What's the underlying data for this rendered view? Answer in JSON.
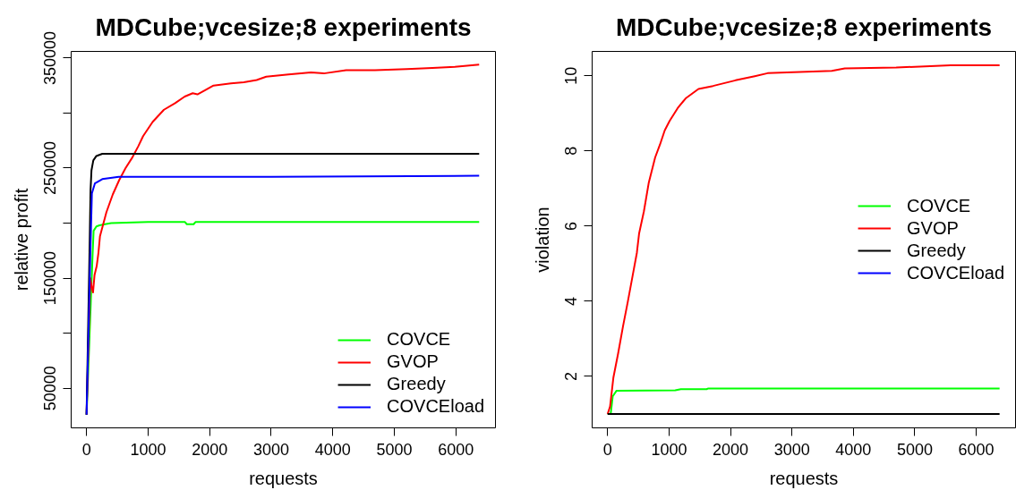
{
  "chart_data": [
    {
      "type": "line",
      "title": "MDCube;vcesize;8 experiments",
      "xlabel": "requests",
      "ylabel": "relative profit",
      "xlim": [
        -250,
        6645
      ],
      "ylim": [
        14000,
        356000
      ],
      "xticks": [
        0,
        1000,
        2000,
        3000,
        4000,
        5000,
        6000
      ],
      "yticks": [
        50000,
        {
          "value": 100000,
          "label": null
        },
        150000,
        {
          "value": 200000,
          "label": null
        },
        250000,
        {
          "value": 300000,
          "label": null
        },
        350000
      ],
      "legend": "bottom right",
      "series": [
        {
          "name": "COVCE",
          "color": "#00ff00",
          "x": [
            0,
            100,
            115,
            160,
            210,
            300,
            400,
            1000,
            1600,
            1630,
            1740,
            1770,
            6380
          ],
          "values": [
            26000,
            174000,
            193000,
            197000,
            198000,
            199000,
            200000,
            201000,
            201000,
            199000,
            199000,
            201000,
            201000
          ]
        },
        {
          "name": "GVOP",
          "color": "#ff0000",
          "x": [
            0,
            60,
            90,
            105,
            130,
            165,
            193,
            218,
            323,
            426,
            530,
            634,
            737,
            842,
            919,
            1075,
            1257,
            1439,
            1595,
            1725,
            1802,
            1933,
            2063,
            2346,
            2556,
            2764,
            2920,
            3283,
            3647,
            3855,
            4218,
            4687,
            5206,
            5621,
            5984,
            6380
          ],
          "values": [
            26000,
            150000,
            140000,
            137000,
            153000,
            161000,
            173000,
            188000,
            210000,
            226000,
            239000,
            250000,
            259000,
            270000,
            279000,
            292000,
            303000,
            309000,
            315000,
            318000,
            317000,
            321000,
            325000,
            327000,
            328000,
            330000,
            333000,
            335000,
            337000,
            336000,
            339000,
            339000,
            340000,
            341000,
            342000,
            344000
          ]
        },
        {
          "name": "Greedy",
          "color": "#000000",
          "x": [
            0,
            50,
            65,
            80,
            110,
            160,
            256,
            500,
            6380
          ],
          "values": [
            26000,
            180000,
            230000,
            248000,
            257000,
            261000,
            263000,
            263000,
            263000
          ]
        },
        {
          "name": "COVCEload",
          "color": "#0000ff",
          "x": [
            0,
            62,
            87,
            135,
            256,
            523,
            3000,
            6380
          ],
          "values": [
            26000,
            173000,
            227000,
            236000,
            240000,
            242000,
            242000,
            243000
          ]
        }
      ]
    },
    {
      "type": "line",
      "title": "MDCube;vcesize;8 experiments",
      "xlabel": "requests",
      "ylabel": "violation",
      "xlim": [
        -252,
        6640
      ],
      "ylim": [
        0.63,
        10.65
      ],
      "xticks": [
        0,
        1000,
        2000,
        3000,
        4000,
        5000,
        6000
      ],
      "yticks": [
        2,
        4,
        6,
        8,
        10
      ],
      "legend": "right",
      "series": [
        {
          "name": "COVCE",
          "color": "#00ff00",
          "x": [
            0,
            50,
            83,
            146,
            1100,
            1192,
            1611,
            1640,
            6380
          ],
          "values": [
            1,
            1,
            1.47,
            1.62,
            1.63,
            1.66,
            1.66,
            1.68,
            1.68
          ]
        },
        {
          "name": "GVOP",
          "color": "#ff0000",
          "x": [
            0,
            40,
            94,
            171,
            250,
            330,
            407,
            476,
            512,
            590,
            669,
            774,
            852,
            930,
            1009,
            1140,
            1270,
            1479,
            1715,
            2081,
            2395,
            2604,
            3650,
            3860,
            4697,
            5586,
            6380
          ],
          "values": [
            1,
            1.2,
            1.97,
            2.61,
            3.33,
            4.0,
            4.68,
            5.29,
            5.8,
            6.39,
            7.15,
            7.83,
            8.17,
            8.55,
            8.8,
            9.14,
            9.4,
            9.65,
            9.73,
            9.88,
            9.99,
            10.07,
            10.13,
            10.2,
            10.22,
            10.28,
            10.28
          ]
        },
        {
          "name": "Greedy",
          "color": "#000000",
          "x": [
            0,
            6380
          ],
          "values": [
            1,
            1
          ]
        },
        {
          "name": "COVCEload",
          "color": "#0000ff"
        }
      ]
    }
  ]
}
